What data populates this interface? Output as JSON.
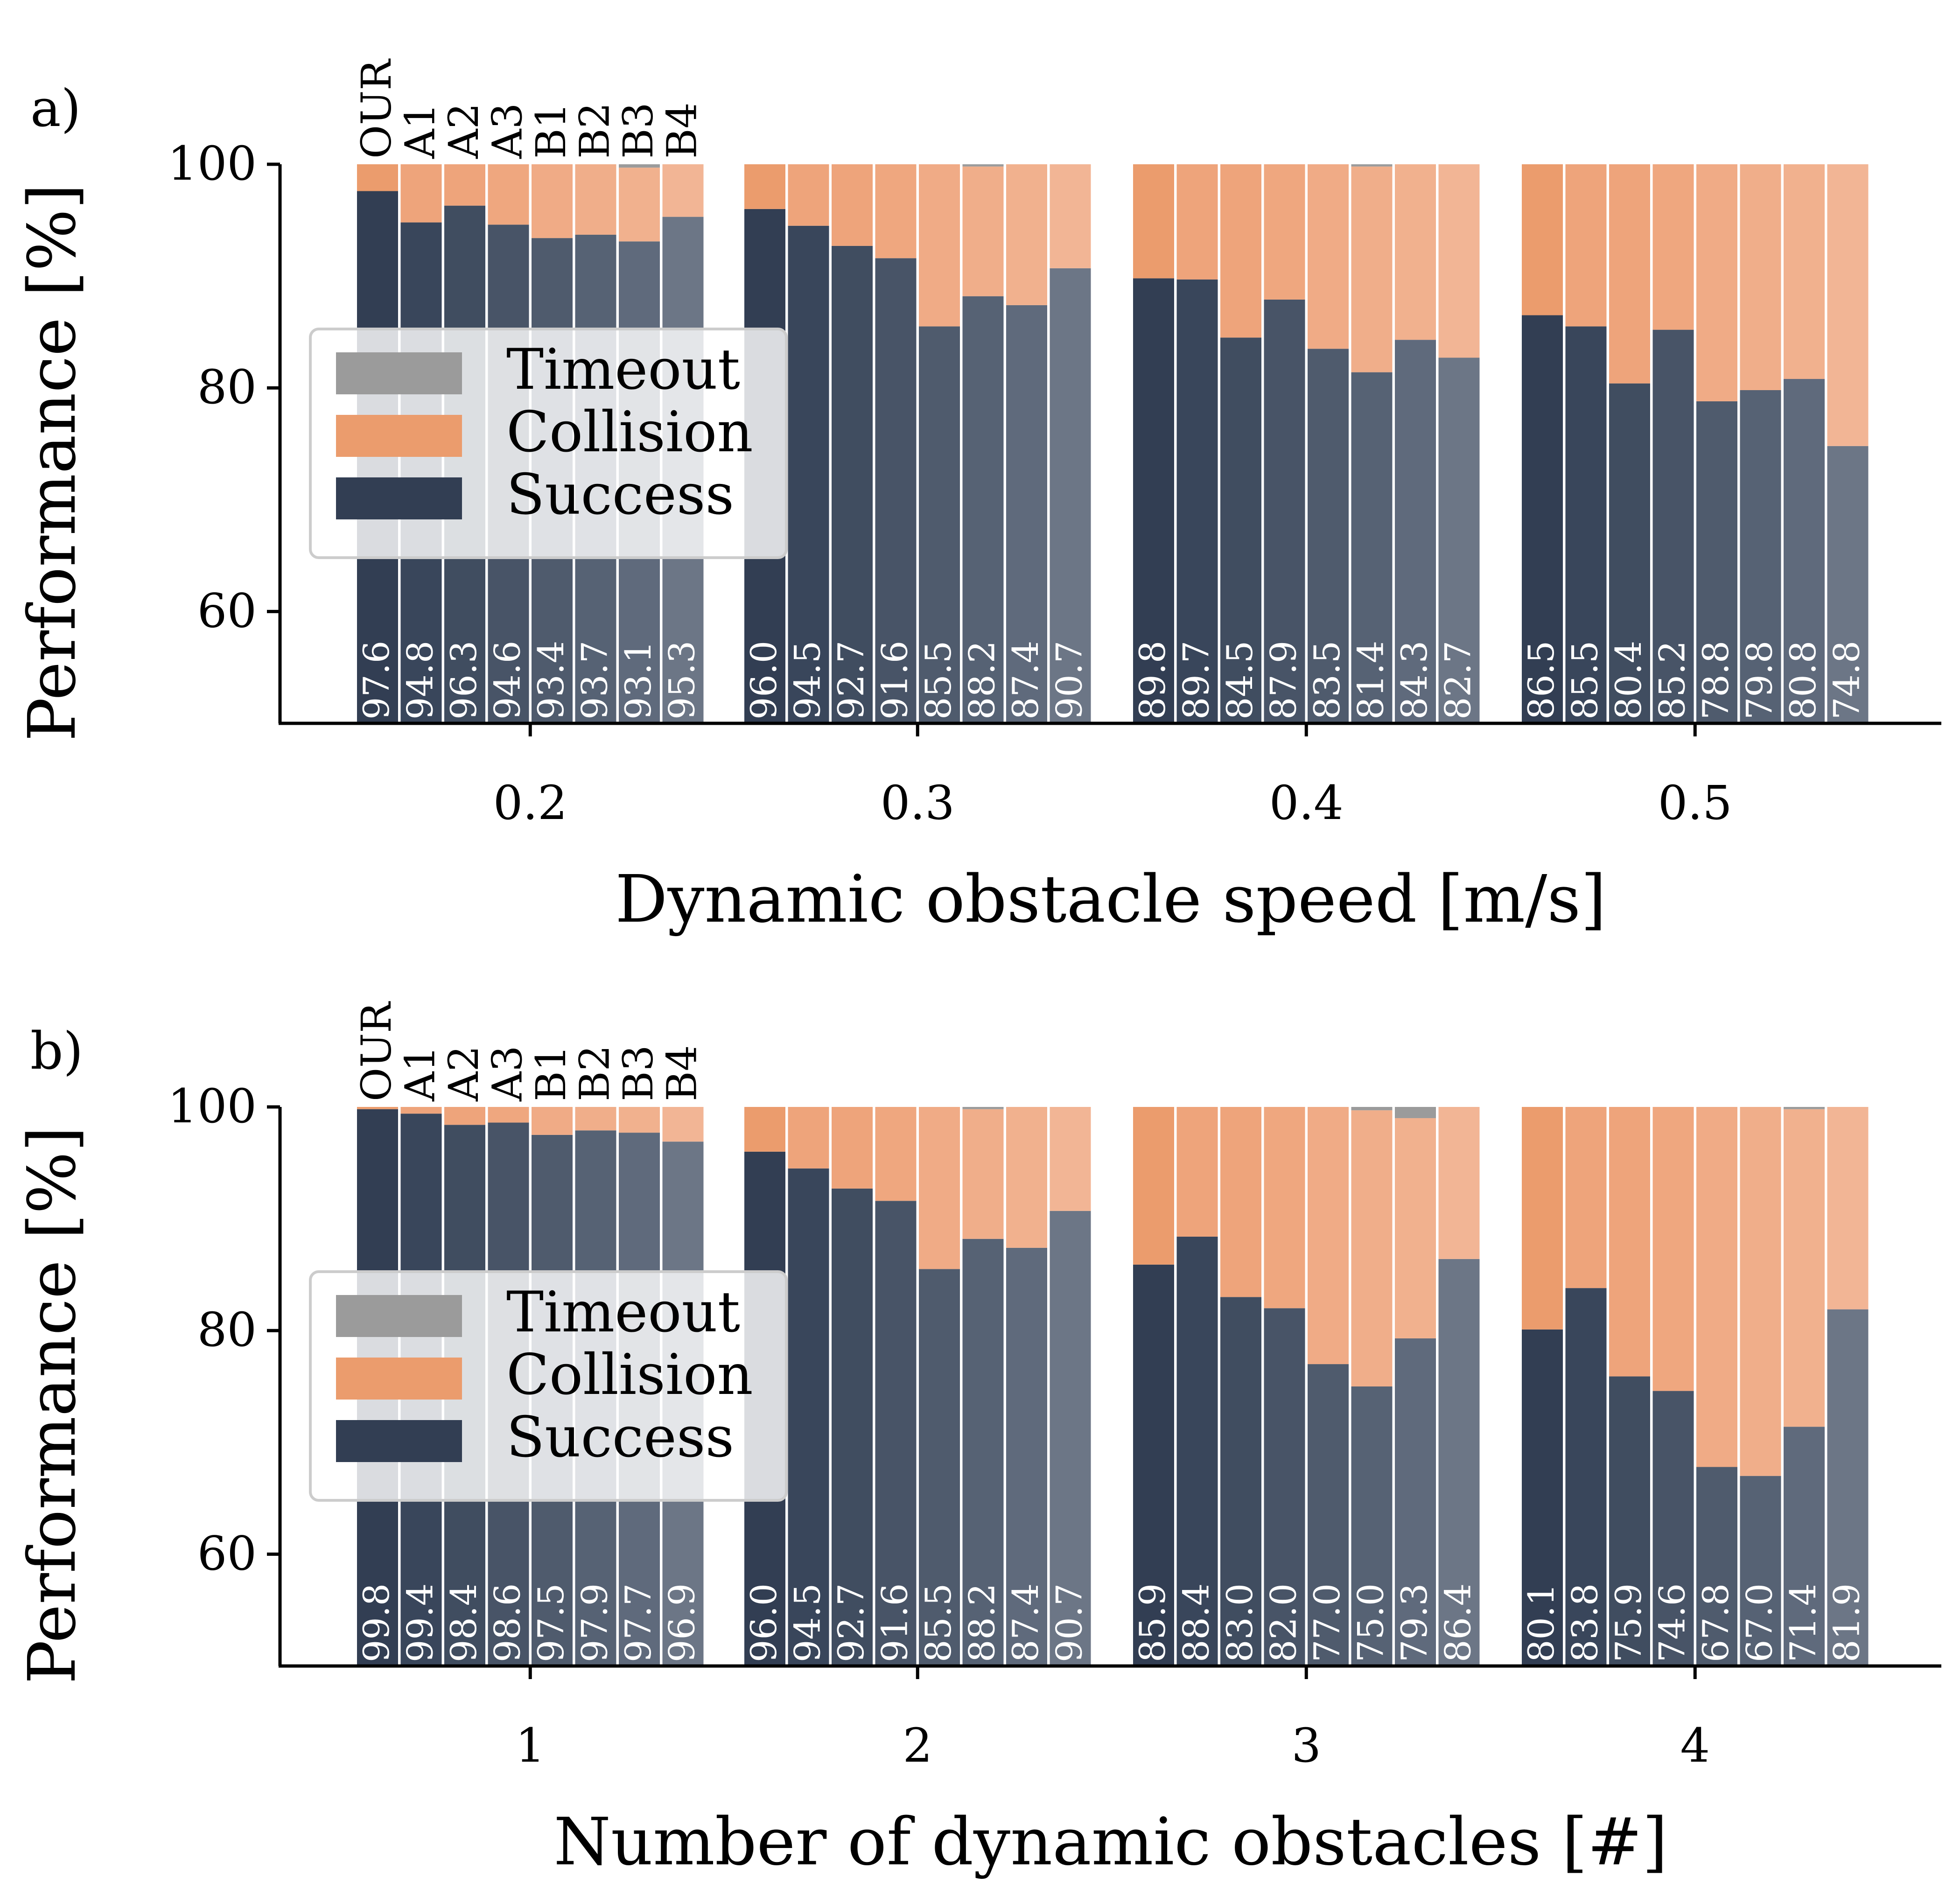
{
  "colors": {
    "timeout": "#9b9b9b",
    "collision_shades": [
      "#eb9c6d",
      "#eea47b",
      "#eea47b",
      "#efa77f",
      "#f0ab86",
      "#f0ae8a",
      "#f1b18e",
      "#f2b595"
    ],
    "success_shades": [
      "#323e53",
      "#39465b",
      "#404d60",
      "#485467",
      "#4f5b6d",
      "#566274",
      "#5f6a7c",
      "#6c7686"
    ],
    "bar_value_text": "#ffffff"
  },
  "methods": [
    "OUR",
    "A1",
    "A2",
    "A3",
    "B1",
    "B2",
    "B3",
    "B4"
  ],
  "legend": {
    "items": [
      "Timeout",
      "Collision",
      "Success"
    ]
  },
  "chart_data": [
    {
      "type": "bar",
      "stacked": true,
      "panel_label": "a)",
      "title": "",
      "xlabel": "Dynamic obstacle speed [m/s]",
      "ylabel": "Performance [%]",
      "categories": [
        "0.2",
        "0.3",
        "0.4",
        "0.5"
      ],
      "ylim": [
        50,
        100
      ],
      "yticks": [
        "60",
        "80",
        "100"
      ],
      "legend_location": "center-left",
      "series": [
        {
          "name": "Success",
          "values": [
            [
              97.6,
              94.8,
              96.3,
              94.6,
              93.4,
              93.7,
              93.1,
              95.3
            ],
            [
              96.0,
              94.5,
              92.7,
              91.6,
              85.5,
              88.2,
              87.4,
              90.7
            ],
            [
              89.8,
              89.7,
              84.5,
              87.9,
              83.5,
              81.4,
              84.3,
              82.7
            ],
            [
              86.5,
              85.5,
              80.4,
              85.2,
              78.8,
              79.8,
              80.8,
              74.8
            ]
          ]
        },
        {
          "name": "Collision",
          "values": [
            [
              2.4,
              5.2,
              3.7,
              5.4,
              6.6,
              6.3,
              6.6,
              4.7
            ],
            [
              4.0,
              5.5,
              7.3,
              8.4,
              14.5,
              11.6,
              12.6,
              9.3
            ],
            [
              10.2,
              10.3,
              15.5,
              12.1,
              16.5,
              18.4,
              15.7,
              17.3
            ],
            [
              13.5,
              14.5,
              19.6,
              14.8,
              21.2,
              20.2,
              19.2,
              25.2
            ]
          ]
        },
        {
          "name": "Timeout",
          "values": [
            [
              0.0,
              0.0,
              0.0,
              0.0,
              0.0,
              0.0,
              0.3,
              0.0
            ],
            [
              0.0,
              0.0,
              0.0,
              0.0,
              0.0,
              0.2,
              0.0,
              0.0
            ],
            [
              0.0,
              0.0,
              0.0,
              0.0,
              0.0,
              0.2,
              0.0,
              0.0
            ],
            [
              0.0,
              0.0,
              0.0,
              0.0,
              0.0,
              0.0,
              0.0,
              0.0
            ]
          ]
        }
      ],
      "value_labels": [
        [
          "97.6",
          "94.8",
          "96.3",
          "94.6",
          "93.4",
          "93.7",
          "93.1",
          "95.3"
        ],
        [
          "96.0",
          "94.5",
          "92.7",
          "91.6",
          "85.5",
          "88.2",
          "87.4",
          "90.7"
        ],
        [
          "89.8",
          "89.7",
          "84.5",
          "87.9",
          "83.5",
          "81.4",
          "84.3",
          "82.7"
        ],
        [
          "86.5",
          "85.5",
          "80.4",
          "85.2",
          "78.8",
          "79.8",
          "80.8",
          "74.8"
        ]
      ]
    },
    {
      "type": "bar",
      "stacked": true,
      "panel_label": "b)",
      "title": "",
      "xlabel": "Number of dynamic obstacles [#]",
      "ylabel": "Performance [%]",
      "categories": [
        "1",
        "2",
        "3",
        "4"
      ],
      "ylim": [
        50,
        100
      ],
      "yticks": [
        "60",
        "80",
        "100"
      ],
      "legend_location": "center-left",
      "series": [
        {
          "name": "Success",
          "values": [
            [
              99.8,
              99.4,
              98.4,
              98.6,
              97.5,
              97.9,
              97.7,
              96.9
            ],
            [
              96.0,
              94.5,
              92.7,
              91.6,
              85.5,
              88.2,
              87.4,
              90.7
            ],
            [
              85.9,
              88.4,
              83.0,
              82.0,
              77.0,
              75.0,
              79.3,
              86.4
            ],
            [
              80.1,
              83.8,
              75.9,
              74.6,
              67.8,
              67.0,
              71.4,
              81.9
            ]
          ]
        },
        {
          "name": "Collision",
          "values": [
            [
              0.2,
              0.6,
              1.6,
              1.4,
              2.5,
              2.1,
              2.3,
              3.1
            ],
            [
              4.0,
              5.5,
              7.3,
              8.4,
              14.5,
              11.6,
              12.6,
              9.3
            ],
            [
              14.1,
              11.6,
              17.0,
              18.0,
              23.0,
              24.7,
              19.7,
              13.6
            ],
            [
              19.9,
              16.2,
              24.1,
              25.4,
              32.2,
              33.0,
              28.4,
              18.1
            ]
          ]
        },
        {
          "name": "Timeout",
          "values": [
            [
              0.0,
              0.0,
              0.0,
              0.0,
              0.0,
              0.0,
              0.0,
              0.0
            ],
            [
              0.0,
              0.0,
              0.0,
              0.0,
              0.0,
              0.2,
              0.0,
              0.0
            ],
            [
              0.0,
              0.0,
              0.0,
              0.0,
              0.0,
              0.3,
              1.0,
              0.0
            ],
            [
              0.0,
              0.0,
              0.0,
              0.0,
              0.0,
              0.0,
              0.2,
              0.0
            ]
          ]
        }
      ],
      "value_labels": [
        [
          "99.8",
          "99.4",
          "98.4",
          "98.6",
          "97.5",
          "97.9",
          "97.7",
          "96.9"
        ],
        [
          "96.0",
          "94.5",
          "92.7",
          "91.6",
          "85.5",
          "88.2",
          "87.4",
          "90.7"
        ],
        [
          "85.9",
          "88.4",
          "83.0",
          "82.0",
          "77.0",
          "75.0",
          "79.3",
          "86.4"
        ],
        [
          "80.1",
          "83.8",
          "75.9",
          "74.6",
          "67.8",
          "67.0",
          "71.4",
          "81.9"
        ]
      ]
    }
  ]
}
